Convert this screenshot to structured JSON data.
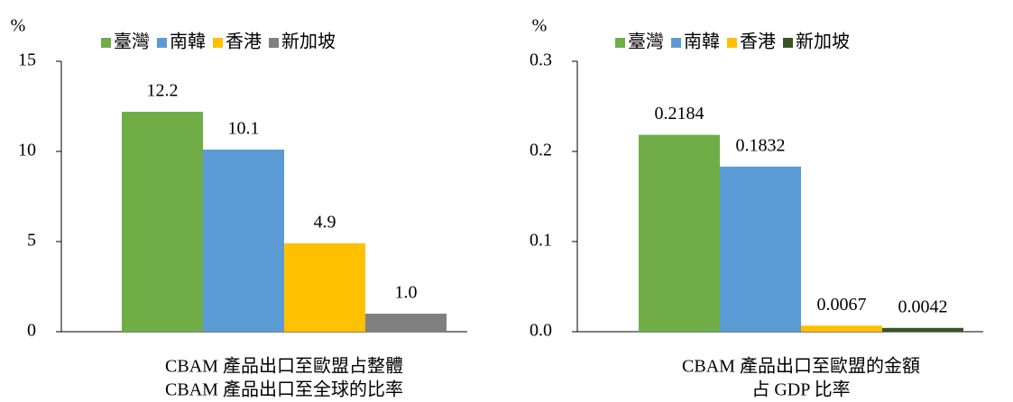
{
  "chart_data": [
    {
      "type": "bar",
      "ylabel": "%",
      "xlabel": [
        "CBAM 產品出口至歐盟占整體",
        "CBAM 產品出口至全球的比率"
      ],
      "ylim": [
        0,
        15
      ],
      "yticks": [
        0,
        5,
        10,
        15
      ],
      "series": [
        {
          "name": "臺灣",
          "color": "#70ad47",
          "values": [
            12.2
          ]
        },
        {
          "name": "南韓",
          "color": "#5b9bd5",
          "values": [
            10.1
          ]
        },
        {
          "name": "香港",
          "color": "#ffc000",
          "values": [
            4.9
          ]
        },
        {
          "name": "新加坡",
          "color": "#808080",
          "values": [
            1
          ],
          "value_labels": [
            "1.0"
          ]
        }
      ]
    },
    {
      "type": "bar",
      "ylabel": "%",
      "xlabel": [
        "CBAM 產品出口至歐盟的金額",
        "占 GDP 比率"
      ],
      "ylim": [
        0,
        0.3
      ],
      "yticks": [
        {
          "value": 0,
          "label": "0.0"
        },
        0.1,
        0.2,
        0.3
      ],
      "series": [
        {
          "name": "臺灣",
          "color": "#70ad47",
          "values": [
            0.2184
          ]
        },
        {
          "name": "南韓",
          "color": "#5b9bd5",
          "values": [
            0.1832
          ]
        },
        {
          "name": "香港",
          "color": "#ffc000",
          "values": [
            0.0067
          ]
        },
        {
          "name": "新加坡",
          "color": "#375623",
          "values": [
            0.0042
          ]
        }
      ]
    }
  ]
}
